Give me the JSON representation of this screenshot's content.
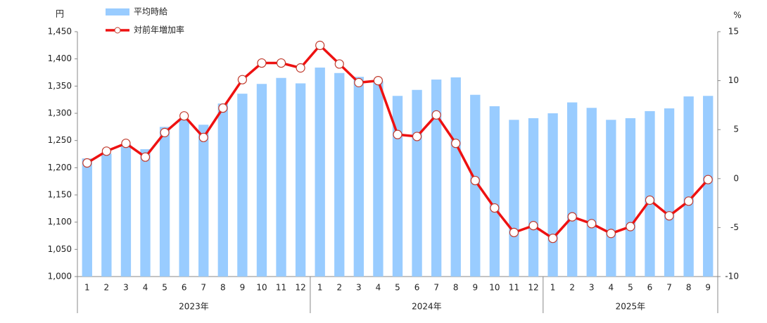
{
  "chart_data": {
    "type": "bar_line",
    "y_unit": "円",
    "y2_unit": "%",
    "categories": [
      "1",
      "2",
      "3",
      "4",
      "5",
      "6",
      "7",
      "8",
      "9",
      "10",
      "11",
      "12",
      "1",
      "2",
      "3",
      "4",
      "5",
      "6",
      "7",
      "8",
      "9",
      "10",
      "11",
      "12",
      "1",
      "2",
      "3",
      "4",
      "5",
      "6",
      "7",
      "8",
      "9"
    ],
    "groups": [
      "2023年",
      "2024年",
      "2025年"
    ],
    "series": [
      {
        "name": "平均時給",
        "type": "bar",
        "color": "#99ccff",
        "values": [
          1217,
          1226,
          1243,
          1234,
          1275,
          1288,
          1279,
          1318,
          1336,
          1354,
          1365,
          1355,
          1384,
          1374,
          1367,
          1359,
          1332,
          1343,
          1362,
          1366,
          1334,
          1313,
          1288,
          1291,
          1300,
          1320,
          1310,
          1288,
          1291,
          1304,
          1309,
          1331,
          1332
        ]
      },
      {
        "name": "対前年増加率",
        "type": "line",
        "axis": "y2",
        "color": "#ee1111",
        "values": [
          1.6,
          2.8,
          3.6,
          2.2,
          4.7,
          6.4,
          4.2,
          7.2,
          10.1,
          11.8,
          11.8,
          11.3,
          13.6,
          11.7,
          9.8,
          10.0,
          4.5,
          4.3,
          6.5,
          3.6,
          -0.2,
          -3.0,
          -5.5,
          -4.8,
          -6.1,
          -3.9,
          -4.6,
          -5.6,
          -4.9,
          -2.2,
          -3.8,
          -2.3,
          -0.1
        ]
      }
    ],
    "ylim": [
      1000,
      1450
    ],
    "yticks": [
      {
        "value": 1000,
        "label": "1,000"
      },
      {
        "value": 1050,
        "label": "1,050"
      },
      {
        "value": 1100,
        "label": "1,100"
      },
      {
        "value": 1150,
        "label": "1,150"
      },
      {
        "value": 1200,
        "label": "1,200"
      },
      {
        "value": 1250,
        "label": "1,250"
      },
      {
        "value": 1300,
        "label": "1,300"
      },
      {
        "value": 1350,
        "label": "1,350"
      },
      {
        "value": 1400,
        "label": "1,400"
      },
      {
        "value": 1450,
        "label": "1,450"
      }
    ],
    "y2lim": [
      -10,
      15
    ],
    "y2ticks": [
      -10,
      -5,
      0,
      5,
      10,
      15
    ],
    "grid": false
  }
}
